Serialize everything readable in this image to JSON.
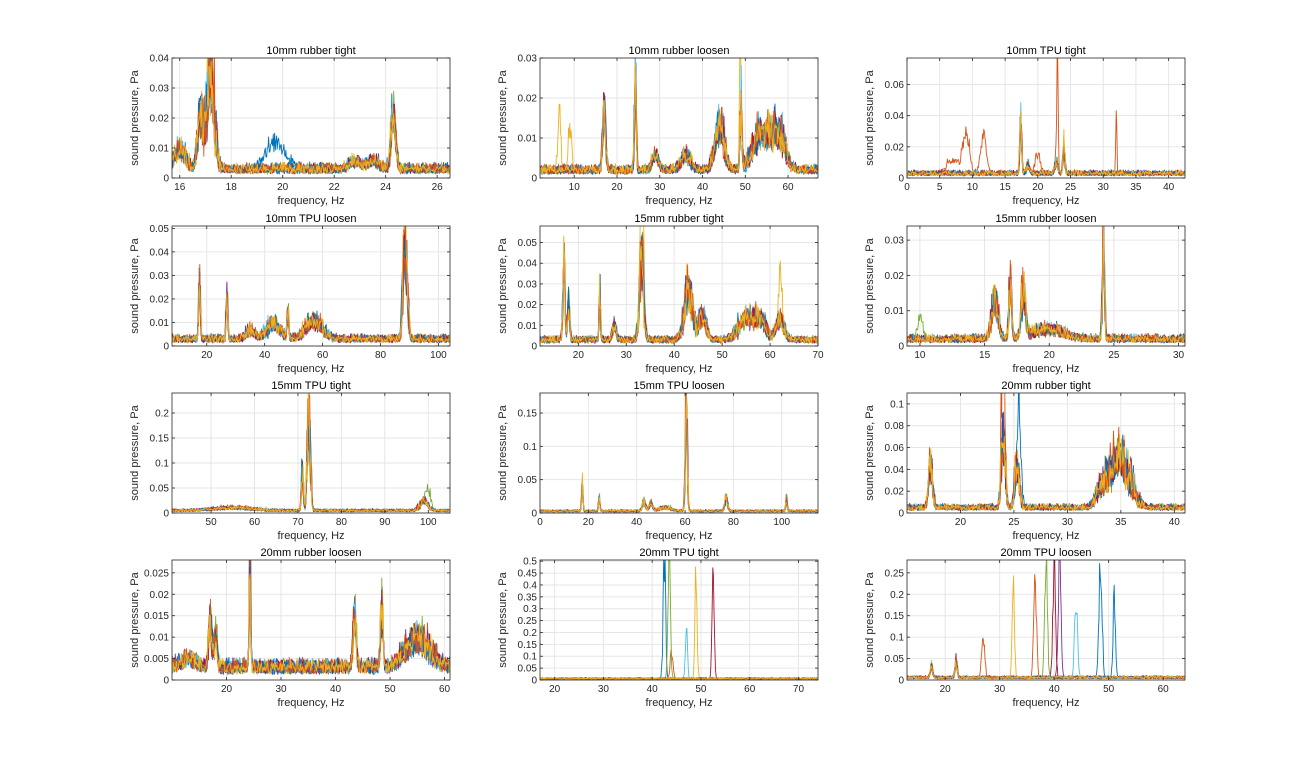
{
  "figure": {
    "colors": [
      "#0072BD",
      "#D95319",
      "#EDB120",
      "#7E2F8E",
      "#77AC30",
      "#4DBEEE",
      "#A2142F"
    ],
    "traces_per_panel": 10
  },
  "chart_data": [
    {
      "type": "line",
      "title": "10mm rubber tight",
      "xlabel": "frequency, Hz",
      "ylabel": "sound pressure, Pa",
      "xlim": [
        15.7,
        26.5
      ],
      "ylim": [
        0,
        0.04
      ],
      "xticks": [
        16,
        18,
        20,
        22,
        24,
        26
      ],
      "xtick_labels": [
        "16",
        "18",
        "20",
        "22",
        "24",
        "26"
      ],
      "yticks": [
        0,
        0.01,
        0.02,
        0.03,
        0.04
      ],
      "ytick_labels": [
        "0",
        "0.01",
        "0.02",
        "0.03",
        "0.04"
      ],
      "baseline": 0.003,
      "peaks": [
        [
          17.2,
          0.033,
          0.2
        ],
        [
          16.8,
          0.018,
          0.15
        ],
        [
          24.3,
          0.02,
          0.12
        ],
        [
          22.8,
          0.003,
          0.3
        ],
        [
          23.5,
          0.003,
          0.3
        ],
        [
          16.0,
          0.007,
          0.3
        ]
      ],
      "outliers": [
        {
          "series": 0,
          "peaks": [
            [
              19.7,
              0.009,
              0.55
            ]
          ]
        }
      ],
      "grid": true
    },
    {
      "type": "line",
      "title": "10mm rubber loosen",
      "xlabel": "frequency, Hz",
      "ylabel": "sound pressure, Pa",
      "xlim": [
        2,
        67
      ],
      "ylim": [
        0,
        0.03
      ],
      "xticks": [
        10,
        20,
        30,
        40,
        50,
        60
      ],
      "xtick_labels": [
        "10",
        "20",
        "30",
        "40",
        "50",
        "60"
      ],
      "yticks": [
        0,
        0.01,
        0.02,
        0.03
      ],
      "ytick_labels": [
        "0",
        "0.01",
        "0.02",
        "0.03"
      ],
      "baseline": 0.002,
      "peaks": [
        [
          17,
          0.015,
          0.5
        ],
        [
          24.3,
          0.025,
          0.3
        ],
        [
          44,
          0.012,
          1.5
        ],
        [
          49,
          0.018,
          0.3
        ],
        [
          54,
          0.01,
          3
        ],
        [
          58,
          0.008,
          2
        ],
        [
          36,
          0.004,
          1.5
        ],
        [
          29,
          0.004,
          1.0
        ]
      ],
      "outliers": [
        {
          "series": 2,
          "peaks": [
            [
              6.5,
              0.014,
              0.5
            ],
            [
              9,
              0.012,
              0.5
            ],
            [
              48.8,
              0.03,
              0.2
            ]
          ]
        }
      ],
      "grid": true
    },
    {
      "type": "line",
      "title": "10mm TPU tight",
      "xlabel": "frequency, Hz",
      "ylabel": "sound pressure, Pa",
      "xlim": [
        0,
        42.5
      ],
      "ylim": [
        0,
        0.077
      ],
      "xticks": [
        0,
        5,
        10,
        15,
        20,
        25,
        30,
        35,
        40
      ],
      "xtick_labels": [
        "0",
        "5",
        "10",
        "15",
        "20",
        "25",
        "30",
        "35",
        "40"
      ],
      "yticks": [
        0,
        0.02,
        0.04,
        0.06
      ],
      "ytick_labels": [
        "0",
        "0.02",
        "0.04",
        "0.06"
      ],
      "baseline": 0.003,
      "peaks": [
        [
          17.4,
          0.035,
          0.2
        ],
        [
          24.0,
          0.02,
          0.2
        ],
        [
          22.8,
          0.008,
          0.3
        ],
        [
          18.5,
          0.006,
          0.3
        ]
      ],
      "outliers": [
        {
          "series": 1,
          "peaks": [
            [
              9,
              0.028,
              0.7
            ],
            [
              11.7,
              0.024,
              0.6
            ],
            [
              7,
              0.008,
              1.5
            ],
            [
              23,
              0.075,
              0.15
            ],
            [
              32,
              0.046,
              0.12
            ],
            [
              20,
              0.012,
              0.6
            ]
          ]
        }
      ],
      "grid": true
    },
    {
      "type": "line",
      "title": "10mm TPU loosen",
      "xlabel": "frequency, Hz",
      "ylabel": "sound pressure, Pa",
      "xlim": [
        8,
        104
      ],
      "ylim": [
        0,
        0.051
      ],
      "xticks": [
        20,
        40,
        60,
        80,
        100
      ],
      "xtick_labels": [
        "20",
        "40",
        "60",
        "80",
        "100"
      ],
      "yticks": [
        0,
        0.01,
        0.02,
        0.03,
        0.04,
        0.05
      ],
      "ytick_labels": [
        "0",
        "0.01",
        "0.02",
        "0.03",
        "0.04",
        "0.05"
      ],
      "baseline": 0.003,
      "peaks": [
        [
          17.5,
          0.03,
          0.4
        ],
        [
          27,
          0.02,
          0.4
        ],
        [
          88.5,
          0.045,
          1.0
        ],
        [
          43,
          0.007,
          3
        ],
        [
          57,
          0.008,
          4
        ],
        [
          48,
          0.012,
          0.4
        ],
        [
          35,
          0.004,
          2
        ]
      ],
      "outliers": [],
      "grid": true
    },
    {
      "type": "line",
      "title": "15mm rubber tight",
      "xlabel": "frequency, Hz",
      "ylabel": "sound pressure, Pa",
      "xlim": [
        12,
        70
      ],
      "ylim": [
        0,
        0.058
      ],
      "xticks": [
        20,
        30,
        40,
        50,
        60,
        70
      ],
      "xtick_labels": [
        "20",
        "30",
        "40",
        "50",
        "60",
        "70"
      ],
      "yticks": [
        0,
        0.01,
        0.02,
        0.03,
        0.04,
        0.05
      ],
      "ytick_labels": [
        "0",
        "0.01",
        "0.02",
        "0.03",
        "0.04",
        "0.05"
      ],
      "baseline": 0.003,
      "peaks": [
        [
          17,
          0.035,
          0.3
        ],
        [
          18,
          0.02,
          0.3
        ],
        [
          24.5,
          0.025,
          0.2
        ],
        [
          33.2,
          0.042,
          0.6
        ],
        [
          43,
          0.025,
          1.2
        ],
        [
          46,
          0.012,
          1
        ],
        [
          55,
          0.012,
          2
        ],
        [
          58,
          0.01,
          1.5
        ],
        [
          62,
          0.01,
          1.2
        ],
        [
          27.5,
          0.008,
          0.5
        ]
      ],
      "outliers": [
        {
          "series": 2,
          "peaks": [
            [
              33.3,
              0.057,
              0.4
            ],
            [
              62.2,
              0.024,
              0.5
            ]
          ]
        }
      ],
      "grid": true
    },
    {
      "type": "line",
      "title": "15mm rubber loosen",
      "xlabel": "frequency, Hz",
      "ylabel": "sound pressure, Pa",
      "xlim": [
        9,
        30.5
      ],
      "ylim": [
        0,
        0.034
      ],
      "xticks": [
        10,
        15,
        20,
        25,
        30
      ],
      "xtick_labels": [
        "10",
        "15",
        "20",
        "25",
        "30"
      ],
      "yticks": [
        0,
        0.01,
        0.02,
        0.03
      ],
      "ytick_labels": [
        "0",
        "0.01",
        "0.02",
        "0.03"
      ],
      "baseline": 0.002,
      "peaks": [
        [
          15.8,
          0.011,
          0.35
        ],
        [
          17,
          0.016,
          0.15
        ],
        [
          18,
          0.013,
          0.25
        ],
        [
          24.2,
          0.028,
          0.12
        ],
        [
          20,
          0.003,
          1.5
        ]
      ],
      "outliers": [
        {
          "series": 4,
          "peaks": [
            [
              10,
              0.006,
              0.3
            ]
          ]
        }
      ],
      "grid": true
    },
    {
      "type": "line",
      "title": "15mm TPU tight",
      "xlabel": "frequency, Hz",
      "ylabel": "sound pressure, Pa",
      "xlim": [
        41,
        105
      ],
      "ylim": [
        0,
        0.24
      ],
      "xticks": [
        50,
        60,
        70,
        80,
        90,
        100
      ],
      "xtick_labels": [
        "50",
        "60",
        "70",
        "80",
        "90",
        "100"
      ],
      "yticks": [
        0,
        0.05,
        0.1,
        0.15,
        0.2
      ],
      "ytick_labels": [
        "0",
        "0.05",
        "0.1",
        "0.15",
        "0.2"
      ],
      "baseline": 0.005,
      "peaks": [
        [
          72.5,
          0.2,
          0.5
        ],
        [
          71,
          0.08,
          0.3
        ],
        [
          99,
          0.02,
          1.2
        ],
        [
          55,
          0.006,
          6
        ]
      ],
      "outliers": [
        {
          "series": 4,
          "peaks": [
            [
              100,
              0.035,
              0.8
            ]
          ]
        }
      ],
      "grid": true
    },
    {
      "type": "line",
      "title": "15mm TPU loosen",
      "xlabel": "frequency, Hz",
      "ylabel": "sound pressure, Pa",
      "xlim": [
        0,
        115
      ],
      "ylim": [
        0,
        0.18
      ],
      "xticks": [
        0,
        20,
        40,
        60,
        80,
        100
      ],
      "xtick_labels": [
        "0",
        "20",
        "40",
        "60",
        "80",
        "100"
      ],
      "yticks": [
        0,
        0.05,
        0.1,
        0.15
      ],
      "ytick_labels": [
        "0",
        "0.05",
        "0.1",
        "0.15"
      ],
      "baseline": 0.003,
      "peaks": [
        [
          60.5,
          0.16,
          0.6
        ],
        [
          17.5,
          0.04,
          0.4
        ],
        [
          24.5,
          0.02,
          0.4
        ],
        [
          43,
          0.015,
          1
        ],
        [
          46,
          0.012,
          1
        ],
        [
          77,
          0.02,
          0.8
        ],
        [
          102,
          0.02,
          0.4
        ],
        [
          52,
          0.006,
          3
        ]
      ],
      "outliers": [],
      "grid": true
    },
    {
      "type": "line",
      "title": "20mm rubber tight",
      "xlabel": "frequency, Hz",
      "ylabel": "sound pressure, Pa",
      "xlim": [
        15,
        41
      ],
      "ylim": [
        0,
        0.11
      ],
      "xticks": [
        20,
        25,
        30,
        35,
        40
      ],
      "xtick_labels": [
        "20",
        "25",
        "30",
        "35",
        "40"
      ],
      "yticks": [
        0,
        0.02,
        0.04,
        0.06,
        0.08,
        0.1
      ],
      "ytick_labels": [
        "0",
        "0.02",
        "0.04",
        "0.06",
        "0.08",
        "0.1"
      ],
      "baseline": 0.005,
      "peaks": [
        [
          17.2,
          0.045,
          0.25
        ],
        [
          24,
          0.07,
          0.25
        ],
        [
          25.3,
          0.04,
          0.3
        ],
        [
          34.8,
          0.05,
          1.3
        ],
        [
          33,
          0.012,
          0.5
        ]
      ],
      "outliers": [
        {
          "series": 1,
          "peaks": [
            [
              24,
              0.108,
              0.2
            ]
          ]
        },
        {
          "series": 0,
          "peaks": [
            [
              25.5,
              0.073,
              0.25
            ]
          ]
        }
      ],
      "grid": true
    },
    {
      "type": "line",
      "title": "20mm rubber loosen",
      "xlabel": "frequency, Hz",
      "ylabel": "sound pressure, Pa",
      "xlim": [
        10,
        61
      ],
      "ylim": [
        0,
        0.028
      ],
      "xticks": [
        20,
        30,
        40,
        50,
        60
      ],
      "xtick_labels": [
        "20",
        "30",
        "40",
        "50",
        "60"
      ],
      "yticks": [
        0,
        0.005,
        0.01,
        0.015,
        0.02,
        0.025
      ],
      "ytick_labels": [
        "0",
        "0.005",
        "0.01",
        "0.015",
        "0.02",
        "0.025"
      ],
      "baseline": 0.003,
      "peaks": [
        [
          17,
          0.011,
          0.4
        ],
        [
          18,
          0.008,
          0.4
        ],
        [
          24.3,
          0.02,
          0.2
        ],
        [
          43.5,
          0.014,
          0.4
        ],
        [
          48.5,
          0.015,
          0.3
        ],
        [
          55,
          0.007,
          3
        ],
        [
          13,
          0.002,
          2
        ]
      ],
      "outliers": [
        {
          "series": 1,
          "peaks": [
            [
              24.3,
              0.028,
              0.15
            ]
          ]
        }
      ],
      "grid": true
    },
    {
      "type": "line",
      "title": "20mm TPU tight",
      "xlabel": "frequency, Hz",
      "ylabel": "sound pressure, Pa",
      "xlim": [
        17,
        74
      ],
      "ylim": [
        0,
        0.505
      ],
      "xticks": [
        20,
        30,
        40,
        50,
        60,
        70
      ],
      "xtick_labels": [
        "20",
        "30",
        "40",
        "50",
        "60",
        "70"
      ],
      "yticks": [
        0,
        0.05,
        0.1,
        0.15,
        0.2,
        0.25,
        0.3,
        0.35,
        0.4,
        0.45,
        0.5
      ],
      "ytick_labels": [
        "0",
        "0.05",
        "0.1",
        "0.15",
        "0.2",
        "0.25",
        "0.3",
        "0.35",
        "0.4",
        "0.45",
        "0.5"
      ],
      "baseline": 0.006,
      "peaks": [],
      "outliers": [
        {
          "series": 0,
          "peaks": [
            [
              42.5,
              0.49,
              0.35
            ]
          ]
        },
        {
          "series": 4,
          "peaks": [
            [
              43.5,
              0.5,
              0.35
            ]
          ]
        },
        {
          "series": 5,
          "peaks": [
            [
              47,
              0.22,
              0.3
            ]
          ]
        },
        {
          "series": 2,
          "peaks": [
            [
              49,
              0.45,
              0.3
            ]
          ]
        },
        {
          "series": 6,
          "peaks": [
            [
              52.5,
              0.49,
              0.3
            ]
          ]
        },
        {
          "series": 1,
          "peaks": [
            [
              44,
              0.12,
              0.4
            ]
          ]
        }
      ],
      "grid": true
    },
    {
      "type": "line",
      "title": "20mm TPU loosen",
      "xlabel": "frequency, Hz",
      "ylabel": "sound pressure, Pa",
      "xlim": [
        13,
        64
      ],
      "ylim": [
        0,
        0.28
      ],
      "xticks": [
        20,
        30,
        40,
        50,
        60
      ],
      "xtick_labels": [
        "20",
        "30",
        "40",
        "50",
        "60"
      ],
      "yticks": [
        0,
        0.05,
        0.1,
        0.15,
        0.2,
        0.25
      ],
      "ytick_labels": [
        "0",
        "0.05",
        "0.1",
        "0.15",
        "0.2",
        "0.25"
      ],
      "baseline": 0.006,
      "peaks": [
        [
          17.5,
          0.03,
          0.3
        ],
        [
          22,
          0.04,
          0.3
        ]
      ],
      "outliers": [
        {
          "series": 2,
          "peaks": [
            [
              32.5,
              0.23,
              0.3
            ]
          ]
        },
        {
          "series": 1,
          "peaks": [
            [
              36.5,
              0.24,
              0.35
            ]
          ]
        },
        {
          "series": 4,
          "peaks": [
            [
              38.5,
              0.28,
              0.35
            ]
          ]
        },
        {
          "series": 3,
          "peaks": [
            [
              41,
              0.28,
              0.35
            ]
          ]
        },
        {
          "series": 0,
          "peaks": [
            [
              48.5,
              0.28,
              0.4
            ],
            [
              51,
              0.18,
              0.3
            ]
          ]
        },
        {
          "series": 6,
          "peaks": [
            [
              40,
              0.26,
              0.35
            ]
          ]
        },
        {
          "series": 5,
          "peaks": [
            [
              44,
              0.2,
              0.35
            ]
          ]
        },
        {
          "series": 1,
          "peaks": [
            [
              27,
              0.1,
              0.4
            ]
          ]
        }
      ],
      "grid": true
    }
  ]
}
